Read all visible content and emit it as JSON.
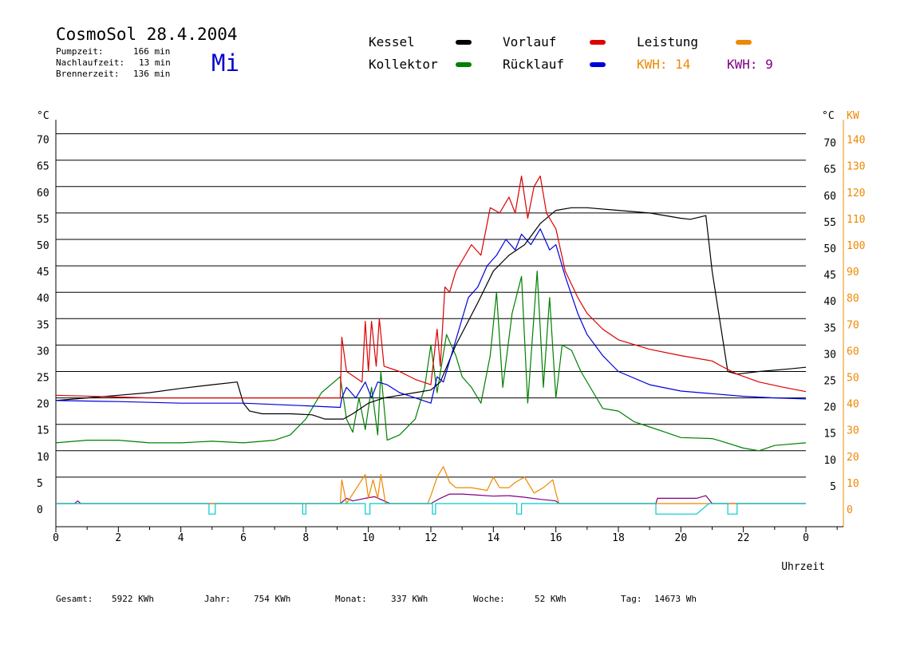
{
  "header": {
    "title": "CosmoSol 28.4.2004",
    "day": "Mi",
    "stats": [
      {
        "label": "Pumpzeit:",
        "value": "166 min"
      },
      {
        "label": "Nachlaufzeit:",
        "value": "13 min"
      },
      {
        "label": "Brennerzeit:",
        "value": "136 min"
      }
    ]
  },
  "legend": {
    "kessel": {
      "label": "Kessel",
      "color": "#000000"
    },
    "vorlauf": {
      "label": "Vorlauf",
      "color": "#dd0000"
    },
    "leistung": {
      "label": "Leistung",
      "color": "#ee8800"
    },
    "kollektor": {
      "label": "Kollektor",
      "color": "#008000"
    },
    "ruecklauf": {
      "label": "Rücklauf",
      "color": "#0000dd"
    },
    "kwh1": {
      "label": "KWH: 14",
      "color": "#ee8800"
    },
    "kwh2": {
      "label": "KWH: 9",
      "color": "#800080"
    }
  },
  "footer": {
    "gesamt": {
      "label": "Gesamt:",
      "value": "5922 KWh"
    },
    "jahr": {
      "label": "Jahr:",
      "value": "754 KWh"
    },
    "monat": {
      "label": "Monat:",
      "value": "337 KWh"
    },
    "woche": {
      "label": "Woche:",
      "value": "52 KWh"
    },
    "tag": {
      "label": "Tag:",
      "value": "14673 Wh"
    }
  },
  "chart_data": {
    "type": "line",
    "xlabel": "Uhrzeit",
    "ylabel_left": "°C",
    "ylabel_right_temp": "°C",
    "ylabel_right_power": "KW",
    "xlim": [
      0,
      24
    ],
    "ylim": [
      0,
      70
    ],
    "x_ticks": [
      "0",
      "2",
      "4",
      "6",
      "8",
      "10",
      "12",
      "14",
      "16",
      "18",
      "20",
      "22",
      "0"
    ],
    "y_ticks_left": [
      "0",
      "5",
      "10",
      "15",
      "20",
      "25",
      "30",
      "35",
      "40",
      "45",
      "50",
      "55",
      "60",
      "65",
      "70"
    ],
    "y_ticks_right_temp": [
      "5",
      "10",
      "15",
      "20",
      "25",
      "30",
      "35",
      "40",
      "45",
      "50",
      "55",
      "60",
      "65",
      "70"
    ],
    "y_ticks_right_power": [
      "0",
      "10",
      "20",
      "30",
      "40",
      "50",
      "60",
      "70",
      "80",
      "90",
      "100",
      "110",
      "120",
      "130",
      "140"
    ],
    "grid": true,
    "series": [
      {
        "name": "Kessel",
        "color": "#000000",
        "points": [
          [
            0,
            19.5
          ],
          [
            1,
            20
          ],
          [
            2,
            20.5
          ],
          [
            3,
            21
          ],
          [
            4,
            21.8
          ],
          [
            5,
            22.5
          ],
          [
            5.8,
            23
          ],
          [
            6,
            19
          ],
          [
            6.2,
            17.5
          ],
          [
            6.6,
            17
          ],
          [
            7.5,
            17
          ],
          [
            8.2,
            16.8
          ],
          [
            8.6,
            16
          ],
          [
            9.2,
            16
          ],
          [
            9.5,
            17
          ],
          [
            10,
            19
          ],
          [
            10.5,
            20
          ],
          [
            11,
            20.5
          ],
          [
            11.5,
            21
          ],
          [
            12,
            21.5
          ],
          [
            12.3,
            23
          ],
          [
            12.8,
            30
          ],
          [
            13.5,
            38
          ],
          [
            14,
            44
          ],
          [
            14.5,
            47
          ],
          [
            15,
            49
          ],
          [
            15.5,
            53
          ],
          [
            16,
            55.5
          ],
          [
            16.5,
            56
          ],
          [
            17,
            56
          ],
          [
            18,
            55.5
          ],
          [
            19,
            55
          ],
          [
            20,
            54
          ],
          [
            20.3,
            53.8
          ],
          [
            20.8,
            54.5
          ],
          [
            21,
            44
          ],
          [
            21.5,
            25
          ],
          [
            21.8,
            24.5
          ],
          [
            22.5,
            25
          ],
          [
            23.5,
            25.5
          ],
          [
            24,
            25.8
          ]
        ]
      },
      {
        "name": "Vorlauf",
        "color": "#dd0000",
        "points": [
          [
            0,
            20.5
          ],
          [
            3,
            20
          ],
          [
            6,
            20
          ],
          [
            8,
            20
          ],
          [
            9.1,
            20
          ],
          [
            9.15,
            31.5
          ],
          [
            9.3,
            25
          ],
          [
            9.8,
            23
          ],
          [
            9.9,
            34.5
          ],
          [
            10,
            25
          ],
          [
            10.1,
            34.5
          ],
          [
            10.25,
            26
          ],
          [
            10.35,
            35
          ],
          [
            10.5,
            26
          ],
          [
            11,
            25
          ],
          [
            11.5,
            23.5
          ],
          [
            12,
            22.5
          ],
          [
            12.2,
            33
          ],
          [
            12.3,
            26
          ],
          [
            12.45,
            41
          ],
          [
            12.6,
            40
          ],
          [
            12.8,
            44
          ],
          [
            13,
            46
          ],
          [
            13.3,
            49
          ],
          [
            13.6,
            47
          ],
          [
            13.9,
            56
          ],
          [
            14.2,
            55
          ],
          [
            14.5,
            58
          ],
          [
            14.7,
            55
          ],
          [
            14.9,
            62
          ],
          [
            15.1,
            54
          ],
          [
            15.3,
            60
          ],
          [
            15.5,
            62
          ],
          [
            15.7,
            55
          ],
          [
            16,
            52
          ],
          [
            16.3,
            44
          ],
          [
            16.7,
            39
          ],
          [
            17,
            36
          ],
          [
            17.5,
            33
          ],
          [
            18,
            31
          ],
          [
            19,
            29.2
          ],
          [
            20,
            28
          ],
          [
            21,
            27
          ],
          [
            21.3,
            26
          ],
          [
            21.8,
            24.5
          ],
          [
            22.5,
            23
          ],
          [
            23.3,
            22
          ],
          [
            24,
            21.2
          ]
        ]
      },
      {
        "name": "Rücklauf",
        "color": "#0000dd",
        "points": [
          [
            0,
            19.5
          ],
          [
            2,
            19.3
          ],
          [
            4,
            19
          ],
          [
            6,
            19
          ],
          [
            8,
            18.5
          ],
          [
            9.1,
            18.2
          ],
          [
            9.15,
            20
          ],
          [
            9.3,
            22
          ],
          [
            9.6,
            20
          ],
          [
            9.9,
            23
          ],
          [
            10.1,
            20
          ],
          [
            10.3,
            23
          ],
          [
            10.6,
            22.5
          ],
          [
            11,
            21
          ],
          [
            11.5,
            20
          ],
          [
            12,
            19
          ],
          [
            12.2,
            24
          ],
          [
            12.4,
            23
          ],
          [
            12.6,
            27
          ],
          [
            12.9,
            33
          ],
          [
            13.2,
            39
          ],
          [
            13.5,
            41
          ],
          [
            13.8,
            45
          ],
          [
            14.1,
            47
          ],
          [
            14.4,
            50
          ],
          [
            14.7,
            48
          ],
          [
            14.9,
            51
          ],
          [
            15.2,
            49
          ],
          [
            15.5,
            52
          ],
          [
            15.8,
            48
          ],
          [
            16,
            49
          ],
          [
            16.3,
            43
          ],
          [
            16.7,
            36
          ],
          [
            17,
            32
          ],
          [
            17.5,
            28
          ],
          [
            18,
            25
          ],
          [
            19,
            22.5
          ],
          [
            20,
            21.3
          ],
          [
            21,
            20.8
          ],
          [
            22,
            20.3
          ],
          [
            23,
            20
          ],
          [
            24,
            19.8
          ]
        ]
      },
      {
        "name": "Kollektor",
        "color": "#008000",
        "points": [
          [
            0,
            11.5
          ],
          [
            1,
            12
          ],
          [
            2,
            12
          ],
          [
            3,
            11.5
          ],
          [
            4,
            11.5
          ],
          [
            5,
            11.8
          ],
          [
            6,
            11.5
          ],
          [
            7,
            12
          ],
          [
            7.5,
            13
          ],
          [
            8,
            16
          ],
          [
            8.5,
            21
          ],
          [
            8.9,
            23
          ],
          [
            9.1,
            24
          ],
          [
            9.3,
            16
          ],
          [
            9.5,
            13.5
          ],
          [
            9.7,
            20
          ],
          [
            9.9,
            14
          ],
          [
            10.1,
            22
          ],
          [
            10.3,
            13
          ],
          [
            10.4,
            25
          ],
          [
            10.6,
            12
          ],
          [
            11,
            13
          ],
          [
            11.5,
            16
          ],
          [
            11.8,
            22
          ],
          [
            12,
            30
          ],
          [
            12.2,
            21
          ],
          [
            12.5,
            32
          ],
          [
            12.8,
            28
          ],
          [
            13,
            24
          ],
          [
            13.3,
            22
          ],
          [
            13.6,
            19
          ],
          [
            13.9,
            28
          ],
          [
            14.1,
            40
          ],
          [
            14.3,
            22
          ],
          [
            14.6,
            36
          ],
          [
            14.9,
            43
          ],
          [
            15.1,
            19
          ],
          [
            15.4,
            44
          ],
          [
            15.6,
            22
          ],
          [
            15.8,
            39
          ],
          [
            16,
            20
          ],
          [
            16.2,
            30
          ],
          [
            16.5,
            29
          ],
          [
            16.8,
            25
          ],
          [
            17.2,
            21
          ],
          [
            17.5,
            18
          ],
          [
            18,
            17.5
          ],
          [
            18.5,
            15.5
          ],
          [
            19,
            14.5
          ],
          [
            19.5,
            13.5
          ],
          [
            20,
            12.5
          ],
          [
            21,
            12.3
          ],
          [
            21.3,
            11.8
          ],
          [
            22,
            10.5
          ],
          [
            22.5,
            10
          ],
          [
            23,
            11
          ],
          [
            24,
            11.5
          ]
        ]
      },
      {
        "name": "Leistung",
        "color": "#ee8800",
        "points": [
          [
            0,
            0
          ],
          [
            9.1,
            0
          ],
          [
            9.15,
            4.5
          ],
          [
            9.3,
            0
          ],
          [
            9.9,
            5.5
          ],
          [
            10,
            1
          ],
          [
            10.15,
            4.5
          ],
          [
            10.3,
            1
          ],
          [
            10.4,
            5.5
          ],
          [
            10.55,
            0
          ],
          [
            11.9,
            0
          ],
          [
            12,
            1.5
          ],
          [
            12.2,
            5
          ],
          [
            12.4,
            7
          ],
          [
            12.6,
            4
          ],
          [
            12.8,
            3
          ],
          [
            13.3,
            3
          ],
          [
            13.8,
            2.5
          ],
          [
            14,
            5
          ],
          [
            14.2,
            3
          ],
          [
            14.5,
            3
          ],
          [
            14.7,
            4
          ],
          [
            15,
            5
          ],
          [
            15.3,
            2
          ],
          [
            15.6,
            3
          ],
          [
            15.9,
            4.5
          ],
          [
            16,
            2
          ],
          [
            16.1,
            0
          ],
          [
            24,
            0
          ]
        ]
      },
      {
        "name": "KWH: 9",
        "color": "#800080",
        "points": [
          [
            0,
            0
          ],
          [
            0.6,
            0
          ],
          [
            0.7,
            0.5
          ],
          [
            0.8,
            0
          ],
          [
            9.1,
            0
          ],
          [
            9.3,
            1
          ],
          [
            9.5,
            0.5
          ],
          [
            9.9,
            1
          ],
          [
            10.2,
            1.3
          ],
          [
            10.5,
            0.5
          ],
          [
            10.7,
            0
          ],
          [
            12,
            0
          ],
          [
            12.3,
            1
          ],
          [
            12.6,
            1.8
          ],
          [
            13,
            1.8
          ],
          [
            13.5,
            1.6
          ],
          [
            14,
            1.4
          ],
          [
            14.5,
            1.5
          ],
          [
            15,
            1.2
          ],
          [
            15.5,
            0.8
          ],
          [
            16,
            0.5
          ],
          [
            16.1,
            0
          ],
          [
            19.2,
            0
          ],
          [
            19.25,
            1
          ],
          [
            20.5,
            1
          ],
          [
            20.8,
            1.5
          ],
          [
            21,
            0
          ],
          [
            24,
            0
          ]
        ]
      },
      {
        "name": "Pumpe",
        "color": "#00cccc",
        "points": [
          [
            0,
            0
          ],
          [
            4.9,
            0
          ],
          [
            4.9,
            -2
          ],
          [
            5.1,
            -2
          ],
          [
            5.1,
            0
          ],
          [
            7.9,
            0
          ],
          [
            7.9,
            -2
          ],
          [
            8,
            -2
          ],
          [
            8,
            0
          ],
          [
            9.9,
            0
          ],
          [
            9.9,
            -2
          ],
          [
            10.05,
            -2
          ],
          [
            10.05,
            0
          ],
          [
            12.05,
            0
          ],
          [
            12.05,
            -2
          ],
          [
            12.15,
            -2
          ],
          [
            12.15,
            0
          ],
          [
            14.75,
            0
          ],
          [
            14.75,
            -2
          ],
          [
            14.9,
            -2
          ],
          [
            14.9,
            0
          ],
          [
            19.2,
            0
          ],
          [
            19.2,
            -2
          ],
          [
            20.5,
            -2
          ],
          [
            20.9,
            0
          ],
          [
            21.5,
            0
          ],
          [
            21.5,
            -2
          ],
          [
            21.8,
            -2
          ],
          [
            21.8,
            0
          ],
          [
            24,
            0
          ]
        ]
      }
    ]
  }
}
